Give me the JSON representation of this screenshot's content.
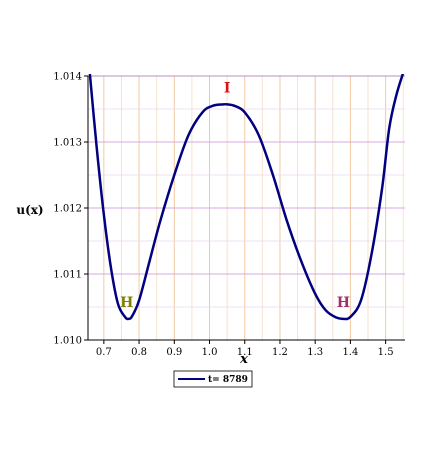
{
  "chart_data": {
    "type": "line",
    "xlabel": "x",
    "ylabel": "u(x)",
    "xlim": [
      0.655,
      1.555
    ],
    "ylim": [
      1.01,
      1.014
    ],
    "x_ticks": [
      0.7,
      0.8,
      0.9,
      1.0,
      1.1,
      1.2,
      1.3,
      1.4,
      1.5
    ],
    "x_tick_labels": [
      "0.7",
      "0.8",
      "0.9",
      "1.0",
      "1.1",
      "1.2",
      "1.3",
      "1.4",
      "1.5"
    ],
    "y_ticks": [
      1.01,
      1.011,
      1.012,
      1.013,
      1.014
    ],
    "y_tick_labels": [
      "1.010",
      "1.011",
      "1.012",
      "1.013",
      "1.014"
    ],
    "grid": true,
    "legend_position": "bottom-left",
    "series": [
      {
        "name": "t= 8789",
        "color": "#000080",
        "x": [
          0.66,
          0.68,
          0.7,
          0.72,
          0.74,
          0.76,
          0.77,
          0.78,
          0.8,
          0.83,
          0.86,
          0.9,
          0.94,
          0.98,
          1.01,
          1.04,
          1.05,
          1.07,
          1.1,
          1.14,
          1.18,
          1.22,
          1.26,
          1.3,
          1.33,
          1.36,
          1.38,
          1.4,
          1.43,
          1.46,
          1.49,
          1.51,
          1.53,
          1.55
        ],
        "y": [
          1.01405,
          1.0129,
          1.0119,
          1.0111,
          1.01055,
          1.01035,
          1.01032,
          1.01036,
          1.0106,
          1.0112,
          1.0118,
          1.0125,
          1.0131,
          1.01345,
          1.01355,
          1.01357,
          1.01357,
          1.01355,
          1.01345,
          1.0131,
          1.0125,
          1.0118,
          1.0112,
          1.0107,
          1.01045,
          1.01034,
          1.01032,
          1.01035,
          1.0106,
          1.0113,
          1.0123,
          1.0132,
          1.0137,
          1.01405
        ]
      }
    ],
    "annotations": [
      {
        "text": "H",
        "x": 0.765,
        "y": 1.0105,
        "color": "#808000"
      },
      {
        "text": "I",
        "x": 1.05,
        "y": 1.01375,
        "color": "#dd1111"
      },
      {
        "text": "H",
        "x": 1.38,
        "y": 1.0105,
        "color": "#a0306a"
      }
    ]
  }
}
